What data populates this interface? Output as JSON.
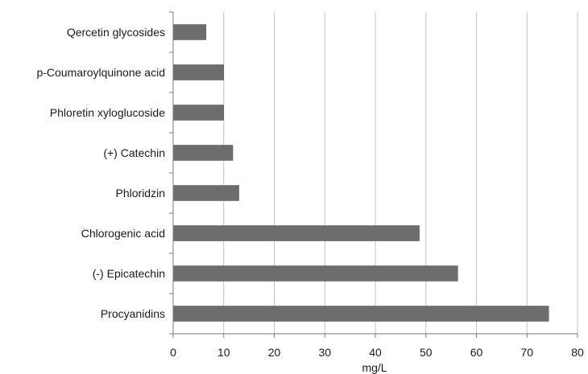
{
  "chart_data": {
    "type": "bar",
    "orientation": "horizontal",
    "categories": [
      "Qercetin glycosides",
      "p-Coumaroylquinone acid",
      "Phloretin xyloglucoside",
      "(+) Catechin",
      "Phloridzin",
      "Chlorogenic acid",
      "(-) Epicatechin",
      "Procyanidins"
    ],
    "values": [
      6.5,
      10,
      10,
      11.8,
      13,
      48.7,
      56.3,
      74.3
    ],
    "xlabel": "mg/L",
    "ylabel": "",
    "title": "",
    "xlim": [
      0,
      80
    ],
    "xticks": [
      "0",
      "10",
      "20",
      "30",
      "40",
      "50",
      "60",
      "70",
      "80"
    ],
    "grid": "vertical",
    "legend": "none",
    "bar_color": "#6d6d6d",
    "grid_color": "#c4c4c4",
    "axis_color": "#7a7a7a"
  }
}
